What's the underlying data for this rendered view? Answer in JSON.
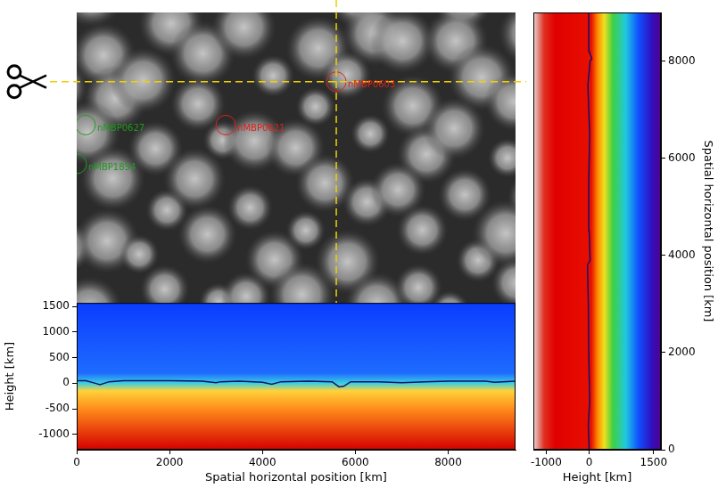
{
  "chart_data": [
    {
      "type": "image",
      "tick_labels": false,
      "xlim": [
        0,
        9450
      ],
      "ylim": [
        0,
        6500
      ],
      "cuts": {
        "x": 5590,
        "y": 4970
      },
      "markers": [
        {
          "label": "nMBP0603",
          "x": 5590,
          "y": 4970,
          "color": "#e0201b"
        },
        {
          "label": "nMBP0621",
          "x": 3210,
          "y": 4010,
          "color": "#e0201b"
        },
        {
          "label": "nMBP0627",
          "x": 190,
          "y": 4010,
          "color": "#1f9a1f"
        },
        {
          "label": "nMBP1854",
          "x": 0,
          "y": 3150,
          "color": "#1f9a1f"
        }
      ]
    },
    {
      "type": "line",
      "xlabel": "Spatial horizontal position [km]",
      "ylabel": "Height [km]",
      "xlim": [
        0,
        9450
      ],
      "xticks": [
        0,
        2000,
        4000,
        6000,
        8000
      ],
      "ylim": [
        -1300,
        1570
      ],
      "yticks": [
        -1000,
        -500,
        0,
        500,
        1000,
        1500
      ],
      "grid": false,
      "color": "#10106e",
      "x": [
        0,
        200,
        400,
        500,
        700,
        1000,
        2000,
        2700,
        3000,
        3100,
        3500,
        4000,
        4200,
        4400,
        5000,
        5500,
        5650,
        5750,
        5900,
        6500,
        7000,
        7500,
        8000,
        8800,
        9000,
        9450
      ],
      "values": [
        50,
        50,
        0,
        -30,
        30,
        50,
        50,
        40,
        10,
        30,
        40,
        20,
        -20,
        30,
        40,
        30,
        -70,
        -60,
        30,
        30,
        10,
        30,
        40,
        40,
        20,
        40
      ]
    },
    {
      "type": "line",
      "xlabel": "Height [km]",
      "ylabel": "Spatial horizontal position [km]",
      "xlim": [
        -1300,
        1670
      ],
      "xticks": [
        -1000,
        0,
        1500
      ],
      "ylim": [
        0,
        9000
      ],
      "yticks": [
        0,
        2000,
        4000,
        6000,
        8000
      ],
      "grid": false,
      "color": "#10106e",
      "x": [
        0,
        -20,
        10,
        -10,
        -20,
        -40,
        20,
        0,
        -10,
        10,
        -30,
        20,
        60,
        0,
        -10
      ],
      "y": [
        0,
        500,
        1000,
        2000,
        3000,
        3800,
        3900,
        4500,
        5500,
        6500,
        7500,
        8000,
        8050,
        8200,
        9000
      ]
    }
  ]
}
